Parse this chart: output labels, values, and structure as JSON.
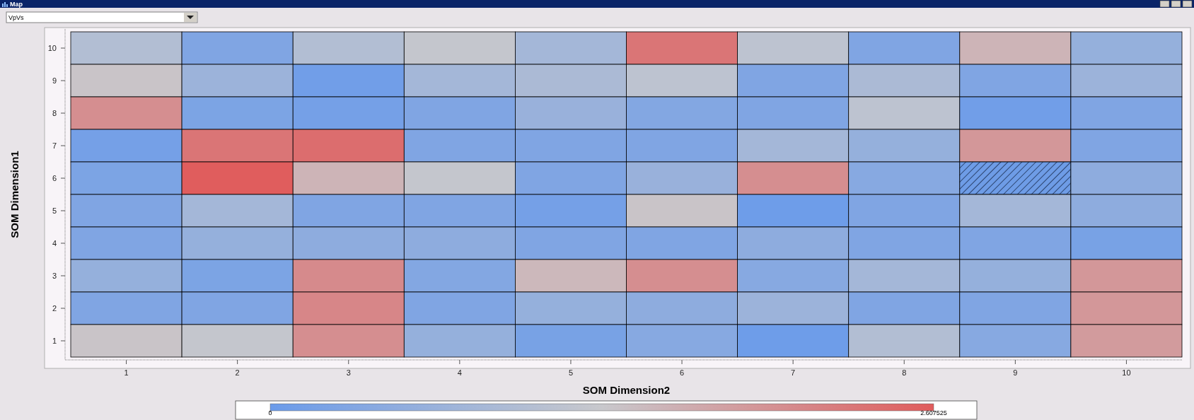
{
  "chart_data": {
    "type": "heatmap",
    "title": "Map",
    "subtitle": "VpVs",
    "xlabel": "SOM Dimension2",
    "ylabel": "SOM Dimension1",
    "categories": [
      "1",
      "2",
      "3",
      "4",
      "5",
      "6",
      "7",
      "8",
      "9",
      "10"
    ],
    "y_categories": [
      "10",
      "9",
      "8",
      "7",
      "6",
      "5",
      "4",
      "3",
      "2",
      "1"
    ],
    "cells": [
      [
        1.0,
        0.3,
        1.0,
        1.25,
        0.8,
        2.3,
        1.15,
        0.3,
        1.55,
        0.6
      ],
      [
        1.35,
        0.7,
        0.1,
        0.8,
        0.9,
        1.15,
        0.3,
        0.9,
        0.3,
        0.7
      ],
      [
        2.0,
        0.25,
        0.15,
        0.3,
        0.65,
        0.35,
        0.3,
        1.15,
        0.1,
        0.3
      ],
      [
        0.15,
        2.3,
        2.4,
        0.3,
        0.3,
        0.3,
        0.8,
        0.6,
        1.9,
        0.3
      ],
      [
        0.25,
        2.6,
        1.55,
        1.25,
        0.3,
        0.65,
        2.0,
        0.4,
        null,
        0.5
      ],
      [
        0.3,
        0.8,
        0.3,
        0.3,
        0.15,
        1.35,
        0.05,
        0.3,
        0.8,
        0.5
      ],
      [
        0.3,
        0.6,
        0.5,
        0.5,
        0.3,
        0.3,
        0.5,
        0.3,
        0.3,
        0.2
      ],
      [
        0.6,
        0.25,
        2.05,
        0.35,
        1.5,
        2.0,
        0.4,
        0.8,
        0.6,
        1.9
      ],
      [
        0.3,
        0.3,
        2.1,
        0.3,
        0.6,
        0.5,
        0.7,
        0.3,
        0.3,
        1.9
      ],
      [
        1.35,
        1.25,
        2.0,
        0.6,
        0.2,
        0.4,
        0.05,
        1.0,
        0.4,
        1.85
      ]
    ],
    "clim": [
      0,
      2.607525
    ],
    "cticks": [
      0,
      2.607525
    ]
  }
}
